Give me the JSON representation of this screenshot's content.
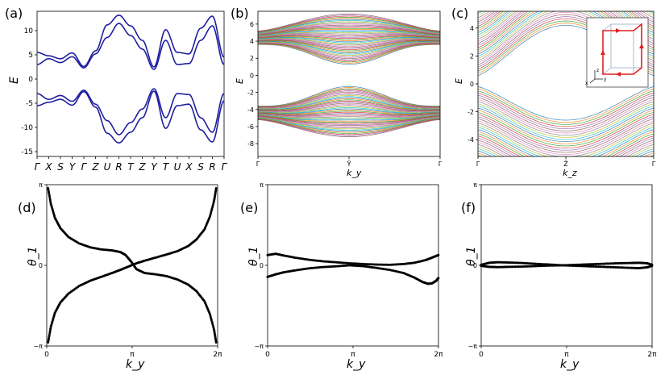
{
  "panels": [
    {
      "label": "(a)",
      "ylabel": "E",
      "xlabel": ""
    },
    {
      "label": "(b)",
      "ylabel": "E",
      "xlabel": "k_y"
    },
    {
      "label": "(c)",
      "ylabel": "E",
      "xlabel": "k_z"
    },
    {
      "label": "(d)",
      "ylabel": "θ_1",
      "xlabel": "k_y"
    },
    {
      "label": "(e)",
      "ylabel": "θ_1",
      "xlabel": "k_y"
    },
    {
      "label": "(f)",
      "ylabel": "θ_1",
      "xlabel": "k_y"
    }
  ],
  "chart_data": [
    {
      "id": "a",
      "type": "line",
      "x_ticks": [
        "Γ",
        "X",
        "S",
        "Y",
        "Γ",
        "Z",
        "U",
        "R",
        "T",
        "Z",
        "Y",
        "T",
        "U",
        "X",
        "S",
        "R",
        "Γ"
      ],
      "y_ticks": [
        10,
        5,
        0,
        -5,
        -10,
        -15
      ],
      "ylim": [
        -16,
        14
      ],
      "line_color": "#1f1fa0",
      "series": [
        {
          "name": "",
          "x": [
            0,
            1,
            2,
            3,
            4,
            5,
            6,
            7,
            8,
            9,
            10,
            11,
            12,
            13,
            14,
            15,
            16
          ],
          "y": [
            5.5,
            4.8,
            4.2,
            5.4,
            2.6,
            5.8,
            11.2,
            13.2,
            11,
            8,
            2.5,
            10.2,
            5.5,
            5.2,
            10.5,
            13,
            4.5
          ]
        },
        {
          "name": "",
          "x": [
            0,
            1,
            2,
            3,
            4,
            5,
            6,
            7,
            8,
            9,
            10,
            11,
            12,
            13,
            14,
            15,
            16
          ],
          "y": [
            3,
            4.2,
            3.4,
            4.6,
            2.3,
            5.2,
            8.6,
            11.5,
            9,
            6.2,
            2,
            8,
            3,
            3.2,
            8,
            11,
            3
          ]
        },
        {
          "name": "",
          "x": [
            0,
            1,
            2,
            3,
            4,
            5,
            6,
            7,
            8,
            9,
            10,
            11,
            12,
            13,
            14,
            15,
            16
          ],
          "y": [
            -3,
            -4.2,
            -3.4,
            -4.6,
            -2.3,
            -5.2,
            -8.6,
            -11.5,
            -9,
            -6.2,
            -2,
            -8,
            -3,
            -3.2,
            -8,
            -11,
            -3
          ]
        },
        {
          "name": "",
          "x": [
            0,
            1,
            2,
            3,
            4,
            5,
            6,
            7,
            8,
            9,
            10,
            11,
            12,
            13,
            14,
            15,
            16
          ],
          "y": [
            -5.5,
            -4.8,
            -4.2,
            -5.4,
            -2.6,
            -5.8,
            -11.2,
            -13.2,
            -11,
            -8,
            -2.5,
            -10.2,
            -5.5,
            -5.2,
            -10.5,
            -13,
            -4.5
          ]
        }
      ]
    },
    {
      "id": "b",
      "type": "line",
      "x_ticks": [
        "Γ",
        "Ŷ",
        "Γ"
      ],
      "y_ticks": [
        6,
        4,
        2,
        0,
        -2,
        -4,
        -6,
        -8
      ],
      "ylim": [
        -9.5,
        7.5
      ],
      "bands": {
        "conduction_top": 7.2,
        "conduction_edge_gamma": 5.2,
        "conduction_bottom_gamma": 3.6,
        "conduction_bottom_Y": 1.3,
        "valence_top_gamma": -3.6,
        "valence_top_Y": -1.3,
        "valence_edge_gamma": -5.2,
        "valence_bottom": -7.2
      }
    },
    {
      "id": "c",
      "type": "line",
      "x_ticks": [
        "Γ",
        "Z̄",
        "Γ"
      ],
      "y_ticks": [
        4,
        2,
        0,
        -2,
        -4
      ],
      "ylim": [
        -5.2,
        5.2
      ],
      "bands": {
        "upper_edge_gamma": 0.6,
        "upper_edge_Z": 4.2,
        "lower_edge_gamma": -0.2,
        "lower_edge_Z": -2.6
      },
      "inset": {
        "axis_labels": [
          "z",
          "y",
          "x"
        ]
      }
    },
    {
      "id": "d",
      "type": "scatter",
      "x_ticks": [
        "0",
        "π",
        "2π"
      ],
      "y_ticks": [
        "π",
        "0",
        "−π"
      ],
      "xlim": [
        0,
        6.2832
      ],
      "ylim": [
        -3.1416,
        3.1416
      ],
      "series": [
        {
          "name": "",
          "x": [
            0.05,
            0.15,
            0.3,
            0.5,
            0.8,
            1.2,
            1.6,
            2.0,
            2.4,
            2.7,
            2.9,
            3.1,
            3.3,
            3.6,
            4.0,
            4.4,
            4.8,
            5.2,
            5.5,
            5.8,
            6.0,
            6.15,
            6.23
          ],
          "y": [
            3.0,
            2.4,
            1.85,
            1.45,
            1.1,
            0.85,
            0.7,
            0.62,
            0.58,
            0.52,
            0.4,
            0.15,
            -0.15,
            -0.3,
            -0.35,
            -0.42,
            -0.55,
            -0.75,
            -1.0,
            -1.4,
            -1.9,
            -2.5,
            -3.0
          ]
        },
        {
          "name": "",
          "x": [
            0.05,
            0.15,
            0.3,
            0.5,
            0.8,
            1.2,
            1.6,
            2.0,
            2.4,
            2.7,
            3.0,
            3.3,
            3.6,
            4.0,
            4.4,
            4.8,
            5.2,
            5.5,
            5.8,
            6.0,
            6.15,
            6.23
          ],
          "y": [
            -3.0,
            -2.4,
            -1.85,
            -1.45,
            -1.1,
            -0.8,
            -0.6,
            -0.45,
            -0.3,
            -0.18,
            -0.05,
            0.08,
            0.18,
            0.3,
            0.42,
            0.55,
            0.75,
            1.0,
            1.4,
            1.9,
            2.5,
            3.0
          ]
        }
      ]
    },
    {
      "id": "e",
      "type": "scatter",
      "x_ticks": [
        "0",
        "π",
        "2π"
      ],
      "y_ticks": [
        "π",
        "0",
        "−π"
      ],
      "xlim": [
        0,
        6.2832
      ],
      "ylim": [
        -3.1416,
        3.1416
      ],
      "series": [
        {
          "name": "",
          "x": [
            0,
            0.3,
            0.6,
            1.0,
            1.5,
            2.0,
            2.5,
            3.0,
            3.5,
            4.0,
            4.5,
            5.0,
            5.4,
            5.8,
            6.0,
            6.28
          ],
          "y": [
            0.4,
            0.45,
            0.38,
            0.3,
            0.22,
            0.16,
            0.12,
            0.08,
            0.05,
            0.03,
            0.02,
            0.05,
            0.1,
            0.2,
            0.28,
            0.4
          ]
        },
        {
          "name": "",
          "x": [
            0,
            0.3,
            0.6,
            1.0,
            1.5,
            2.0,
            2.5,
            3.0,
            3.5,
            4.0,
            4.5,
            5.0,
            5.4,
            5.7,
            5.9,
            6.05,
            6.2,
            6.28
          ],
          "y": [
            -0.45,
            -0.35,
            -0.27,
            -0.2,
            -0.12,
            -0.07,
            -0.04,
            0,
            -0.03,
            -0.1,
            -0.18,
            -0.3,
            -0.48,
            -0.65,
            -0.72,
            -0.7,
            -0.6,
            -0.5
          ]
        }
      ]
    },
    {
      "id": "f",
      "type": "scatter",
      "x_ticks": [
        "0",
        "π",
        "2π"
      ],
      "y_ticks": [
        "π",
        "0",
        "−π"
      ],
      "xlim": [
        0,
        6.2832
      ],
      "ylim": [
        -3.1416,
        3.1416
      ],
      "series": [
        {
          "name": "",
          "x": [
            0,
            0.3,
            0.6,
            1.0,
            1.5,
            2.0,
            2.5,
            3.0,
            3.5,
            4.0,
            4.5,
            5.0,
            5.5,
            5.8,
            6.1,
            6.28
          ],
          "y": [
            0.02,
            0.1,
            0.12,
            0.11,
            0.09,
            0.06,
            0.03,
            0,
            -0.02,
            -0.04,
            -0.06,
            -0.08,
            -0.1,
            -0.11,
            -0.08,
            -0.02
          ]
        },
        {
          "name": "",
          "x": [
            0,
            0.3,
            0.6,
            1.0,
            1.5,
            2.0,
            2.5,
            3.0,
            3.5,
            4.0,
            4.5,
            5.0,
            5.5,
            5.8,
            6.1,
            6.28
          ],
          "y": [
            -0.02,
            -0.06,
            -0.07,
            -0.06,
            -0.05,
            -0.03,
            -0.01,
            0,
            0.02,
            0.04,
            0.06,
            0.08,
            0.09,
            0.1,
            0.08,
            0.02
          ]
        }
      ]
    }
  ]
}
